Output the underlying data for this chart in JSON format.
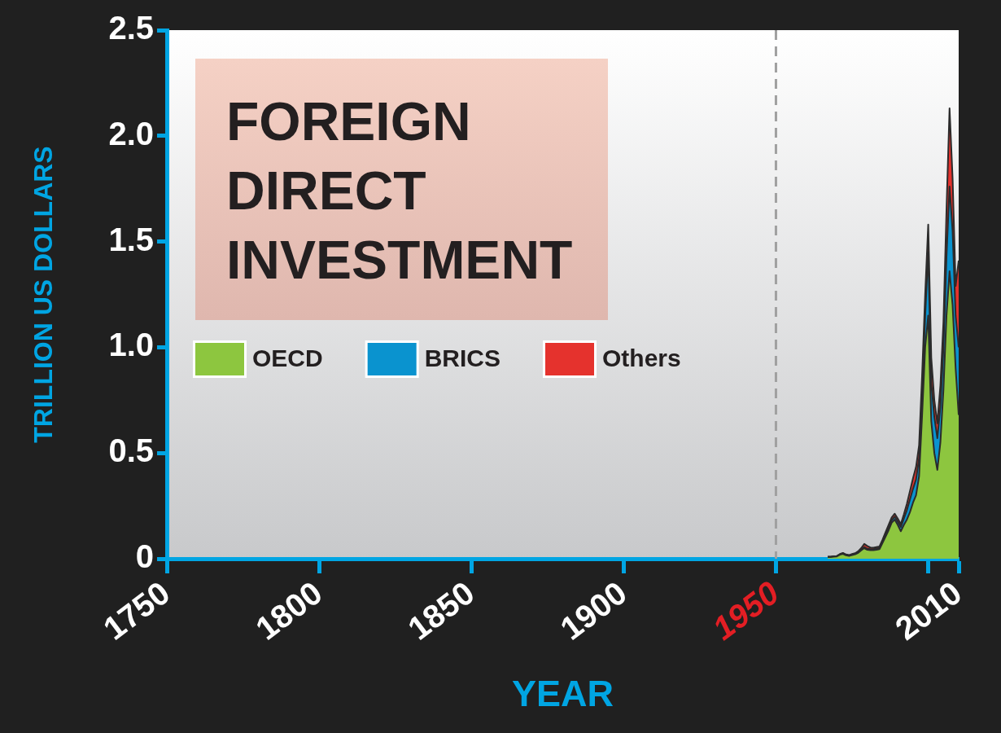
{
  "chart_data": {
    "type": "area",
    "title": "FOREIGN DIRECT INVESTMENT",
    "xlabel": "YEAR",
    "ylabel": "TRILLION US DOLLARS",
    "stacked": true,
    "legend": "left",
    "x": [
      1967,
      1968,
      1969,
      1970,
      1971,
      1972,
      1973,
      1974,
      1975,
      1976,
      1977,
      1978,
      1979,
      1980,
      1981,
      1982,
      1983,
      1984,
      1985,
      1986,
      1987,
      1988,
      1989,
      1990,
      1991,
      1992,
      1993,
      1994,
      1995,
      1996,
      1997,
      1998,
      1999,
      2000,
      2001,
      2002,
      2003,
      2004,
      2005,
      2006,
      2007,
      2008,
      2009,
      2010
    ],
    "series": [
      {
        "name": "OECD",
        "color": "#8dc63f",
        "values": [
          0.008,
          0.008,
          0.01,
          0.011,
          0.019,
          0.023,
          0.016,
          0.013,
          0.017,
          0.021,
          0.028,
          0.04,
          0.05,
          0.042,
          0.04,
          0.04,
          0.042,
          0.045,
          0.075,
          0.105,
          0.135,
          0.17,
          0.185,
          0.16,
          0.13,
          0.16,
          0.185,
          0.22,
          0.265,
          0.3,
          0.39,
          0.68,
          1.0,
          1.15,
          0.65,
          0.5,
          0.42,
          0.55,
          0.8,
          1.15,
          1.36,
          1.2,
          0.9,
          0.68
        ]
      },
      {
        "name": "BRICS",
        "color": "#0a93cf",
        "values": [
          0.001,
          0.001,
          0.001,
          0.001,
          0.001,
          0.002,
          0.002,
          0.002,
          0.002,
          0.002,
          0.003,
          0.004,
          0.005,
          0.005,
          0.005,
          0.005,
          0.006,
          0.006,
          0.007,
          0.01,
          0.012,
          0.012,
          0.014,
          0.015,
          0.02,
          0.03,
          0.045,
          0.06,
          0.065,
          0.075,
          0.085,
          0.11,
          0.15,
          0.3,
          0.18,
          0.17,
          0.15,
          0.17,
          0.2,
          0.28,
          0.4,
          0.35,
          0.25,
          0.32
        ]
      },
      {
        "name": "Others",
        "color": "#e5322d",
        "values": [
          0.001,
          0.001,
          0.001,
          0.001,
          0.002,
          0.002,
          0.002,
          0.002,
          0.003,
          0.003,
          0.004,
          0.006,
          0.015,
          0.013,
          0.008,
          0.007,
          0.007,
          0.007,
          0.008,
          0.011,
          0.013,
          0.013,
          0.014,
          0.015,
          0.014,
          0.02,
          0.03,
          0.04,
          0.05,
          0.059,
          0.062,
          0.08,
          0.1,
          0.13,
          0.12,
          0.08,
          0.07,
          0.1,
          0.12,
          0.22,
          0.37,
          0.25,
          0.14,
          0.41
        ]
      }
    ],
    "xlim": [
      1750,
      2010
    ],
    "xticks": [
      1750,
      1800,
      1850,
      1900,
      1950,
      {
        "value": 2000,
        "label": null
      },
      2010
    ],
    "ylim": [
      0,
      2.5
    ],
    "yticks": [
      0,
      0.5,
      {
        "value": 1,
        "label": "1.0"
      },
      1.5,
      {
        "value": 2,
        "label": "2.0"
      },
      2.5
    ],
    "ref_lines": [
      {
        "axis": "x",
        "value": 1950,
        "color": "#a0a0a0",
        "line_style": "dashed"
      }
    ]
  }
}
